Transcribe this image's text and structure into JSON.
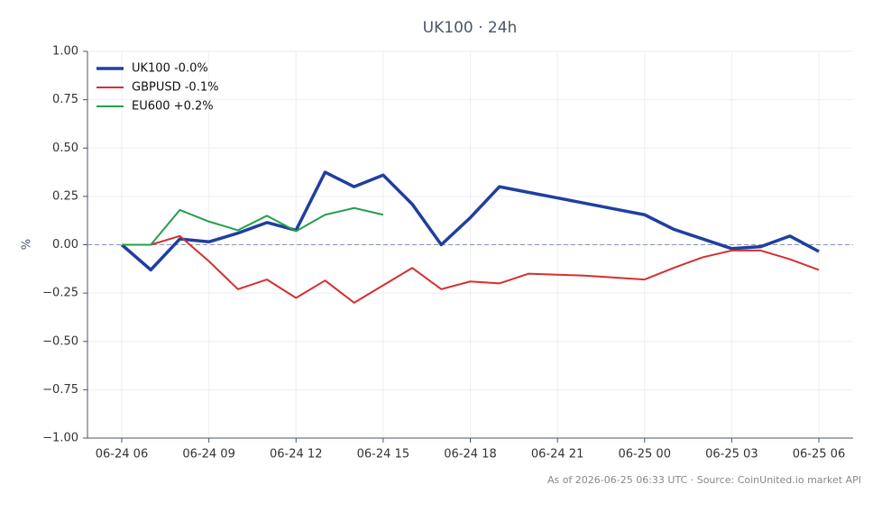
{
  "chart_data": {
    "type": "line",
    "title": "UK100 · 24h",
    "y_label": "%",
    "footer": "As of 2026-06-25 06:33 UTC · Source: CoinUnited.io market API",
    "categories": [
      "06-24 06",
      null,
      null,
      "06-24 09",
      null,
      null,
      "06-24 12",
      null,
      null,
      "06-24 15",
      null,
      null,
      "06-24 18",
      null,
      null,
      "06-24 21",
      null,
      null,
      "06-25 00",
      null,
      null,
      "06-25 03",
      null,
      null,
      "06-25 06"
    ],
    "series": [
      {
        "name": "UK100 -0.0%",
        "color": "#1f3fa0",
        "line_width": 3.5,
        "values": [
          0,
          -0.13,
          0.03,
          0.015,
          0.06,
          0.115,
          0.075,
          0.375,
          0.3,
          0.36,
          0.21,
          0.0,
          0.14,
          0.3,
          0.271,
          0.242,
          0.213,
          0.184,
          0.155,
          0.08,
          0.03,
          -0.02,
          -0.01,
          0.045,
          -0.035
        ]
      },
      {
        "name": "GBPUSD -0.1%",
        "color": "#d62f2f",
        "line_width": 2,
        "values": [
          0,
          0,
          0.045,
          -0.085,
          -0.23,
          -0.18,
          -0.275,
          -0.185,
          -0.3,
          -0.21,
          -0.12,
          -0.23,
          -0.19,
          -0.2,
          -0.15,
          -0.155,
          -0.16,
          -0.17,
          -0.18,
          -0.12,
          -0.065,
          -0.03,
          -0.03,
          -0.075,
          -0.13
        ]
      },
      {
        "name": "EU600 +0.2%",
        "color": "#22a04b",
        "line_width": 2,
        "values": [
          0,
          0,
          0.18,
          0.12,
          0.075,
          0.15,
          0.07,
          0.155,
          0.19,
          0.155,
          null,
          null,
          null,
          null,
          null,
          null,
          null,
          null,
          null,
          null,
          null,
          null,
          null,
          null,
          null
        ]
      }
    ],
    "ylim": [
      -1,
      1
    ],
    "yticks": [
      {
        "value": 1,
        "label": "1.00"
      },
      {
        "value": 0.75,
        "label": "0.75"
      },
      {
        "value": 0.5,
        "label": "0.50"
      },
      {
        "value": 0.25,
        "label": "0.25"
      },
      {
        "value": 0,
        "label": "0.00"
      },
      {
        "value": -0.25,
        "label": "−0.25"
      },
      {
        "value": -0.5,
        "label": "−0.50"
      },
      {
        "value": -0.75,
        "label": "−0.75"
      },
      {
        "value": -1,
        "label": "−1.00"
      }
    ],
    "grid": true,
    "zero_line": true,
    "legend": "upper-left"
  }
}
